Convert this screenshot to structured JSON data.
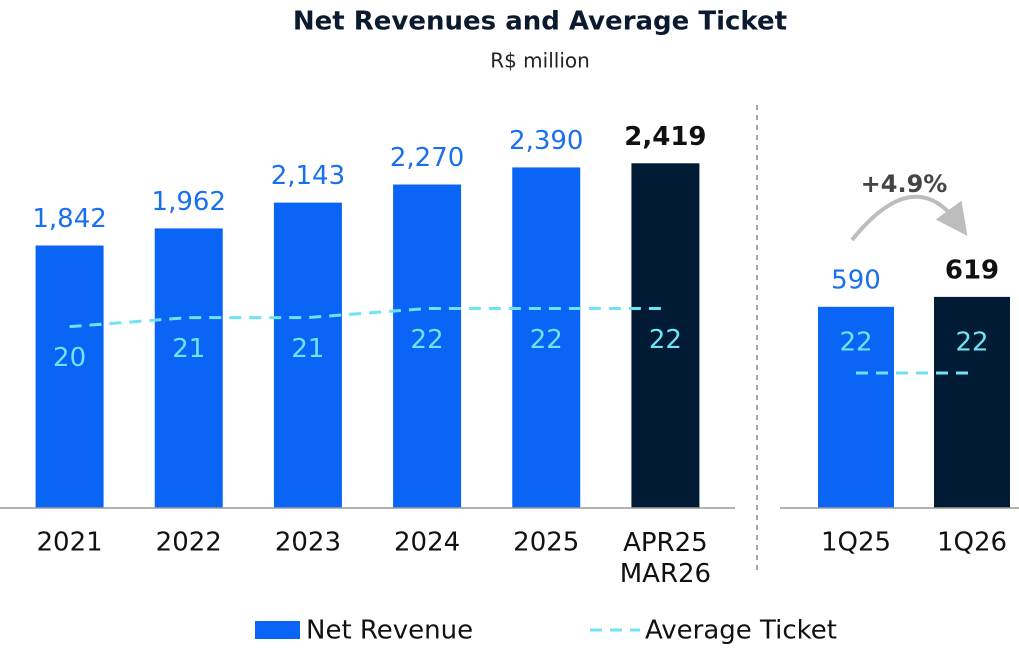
{
  "title": "Net Revenues and Average Ticket",
  "subtitle": "R$ million",
  "chart_data": [
    {
      "type": "bar",
      "categories": [
        "2021",
        "2022",
        "2023",
        "2024",
        "2025",
        "APR25\nMAR26"
      ],
      "series": [
        {
          "name": "Net Revenue",
          "colors": [
            "#0a64f5",
            "#0a64f5",
            "#0a64f5",
            "#0a64f5",
            "#0a64f5",
            "#001b33"
          ],
          "values": [
            1842,
            1962,
            2143,
            2270,
            2390,
            2419
          ],
          "value_labels": [
            "1,842",
            "1,962",
            "2,143",
            "2,270",
            "2,390",
            "2,419"
          ]
        },
        {
          "name": "Average Ticket",
          "type": "line",
          "axis": "y2",
          "color": "#6fe3f5",
          "values": [
            20,
            21,
            21,
            22,
            22,
            22
          ]
        }
      ],
      "ylim": [
        0,
        2800
      ],
      "y2lim": [
        0,
        44
      ]
    },
    {
      "type": "bar",
      "categories": [
        "1Q25",
        "1Q26"
      ],
      "series": [
        {
          "colors": [
            "#0a64f5",
            "#001b33"
          ],
          "values": [
            590,
            619
          ],
          "value_labels": [
            "590",
            "619"
          ]
        },
        {
          "type": "line",
          "axis": "y2",
          "color": "#6fe3f5",
          "values": [
            22,
            22
          ]
        }
      ],
      "ylim": [
        0,
        1170
      ],
      "y2lim": [
        0,
        65
      ],
      "annotation": "+4.9%"
    }
  ]
}
